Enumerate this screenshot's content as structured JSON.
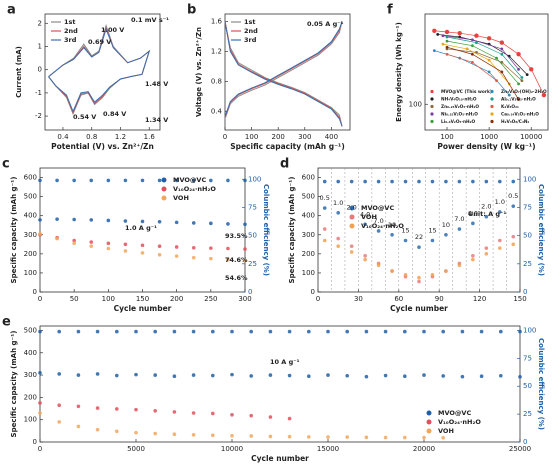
{
  "chart_data": [
    {
      "label": "a",
      "type": "line",
      "xlabel": "Potential (V) vs. Zn²⁺/Zn",
      "ylabel": "Current (mA)",
      "xlim": [
        0.15,
        1.75
      ],
      "xticks": [
        0.4,
        0.8,
        1.2,
        1.6
      ],
      "ylim": [
        -2.6,
        2.4
      ],
      "yticks": [
        -2,
        -1,
        0,
        1,
        2
      ],
      "legend": "upper left",
      "x": [
        0.2,
        0.4,
        0.55,
        0.69,
        0.8,
        0.9,
        1.0,
        1.1,
        1.3,
        1.48,
        1.6,
        1.5,
        1.34,
        1.2,
        1.05,
        0.95,
        0.84,
        0.75,
        0.65,
        0.54,
        0.45,
        0.3,
        0.2
      ],
      "series": [
        {
          "name": "1st",
          "color": "#8a8a8a",
          "values": [
            -0.3,
            0.2,
            0.5,
            1.1,
            0.6,
            0.8,
            1.9,
            1.0,
            0.3,
            0.5,
            0.8,
            -0.2,
            -0.3,
            -0.4,
            -0.8,
            -1.2,
            -1.5,
            -1.0,
            -1.1,
            -1.9,
            -1.2,
            -0.7,
            -0.3
          ]
        },
        {
          "name": "2nd",
          "color": "#d9534f",
          "values": [
            -0.3,
            0.2,
            0.45,
            1.0,
            0.55,
            0.75,
            1.8,
            0.95,
            0.3,
            0.5,
            0.8,
            -0.2,
            -0.3,
            -0.4,
            -0.75,
            -1.15,
            -1.45,
            -1.0,
            -1.05,
            -1.85,
            -1.15,
            -0.7,
            -0.3
          ]
        },
        {
          "name": "3rd",
          "color": "#3a6fb0",
          "values": [
            -0.3,
            0.2,
            0.45,
            0.95,
            0.55,
            0.75,
            1.75,
            0.95,
            0.3,
            0.5,
            0.8,
            -0.2,
            -0.3,
            -0.4,
            -0.75,
            -1.1,
            -1.4,
            -0.95,
            -1.0,
            -1.8,
            -1.1,
            -0.7,
            -0.3
          ]
        }
      ],
      "annotations": [
        "0.1 mV s⁻¹",
        "1.00 V",
        "0.69 V",
        "0.54 V",
        "0.84 V",
        "1.48 V",
        "1.34 V"
      ]
    },
    {
      "label": "b",
      "type": "line",
      "xlabel": "Specific capacity (mAh g⁻¹)",
      "ylabel": "Voltage (V) vs. Zn²⁺/Zn",
      "xlim": [
        0,
        470
      ],
      "xticks": [
        0,
        100,
        200,
        300,
        400
      ],
      "ylim": [
        0.15,
        1.7
      ],
      "yticks": [
        0.4,
        0.8,
        1.2,
        1.6
      ],
      "legend": "upper left",
      "x": [
        0,
        20,
        50,
        100,
        150,
        200,
        250,
        300,
        350,
        400,
        430,
        440,
        440,
        0,
        20,
        50,
        100,
        150,
        200,
        250,
        300,
        350,
        400,
        430,
        440
      ],
      "series": [
        {
          "name": "1st",
          "color": "#8a8a8a",
          "values": [
            1.6,
            1.25,
            1.05,
            0.95,
            0.85,
            0.78,
            0.72,
            0.65,
            0.55,
            0.45,
            0.35,
            0.2,
            null,
            0.3,
            0.5,
            0.6,
            0.68,
            0.75,
            0.85,
            0.95,
            1.05,
            1.15,
            1.3,
            1.45,
            1.6
          ]
        },
        {
          "name": "2nd",
          "color": "#d9534f",
          "values": [
            1.6,
            1.22,
            1.03,
            0.93,
            0.84,
            0.77,
            0.71,
            0.64,
            0.54,
            0.44,
            0.32,
            0.2,
            null,
            0.32,
            0.52,
            0.62,
            0.7,
            0.77,
            0.87,
            0.97,
            1.07,
            1.17,
            1.32,
            1.48,
            1.6
          ]
        },
        {
          "name": "3rd",
          "color": "#3a6fb0",
          "values": [
            1.6,
            1.2,
            1.02,
            0.92,
            0.83,
            0.76,
            0.7,
            0.63,
            0.53,
            0.43,
            0.3,
            0.2,
            null,
            0.33,
            0.53,
            0.63,
            0.71,
            0.78,
            0.88,
            0.98,
            1.08,
            1.18,
            1.33,
            1.5,
            1.6
          ]
        }
      ],
      "annotations": [
        "0.05 A g⁻¹"
      ]
    },
    {
      "label": "c",
      "type": "scatter",
      "xlabel": "Cycle number",
      "ylabel": "Specific capacity (mAh g⁻¹)",
      "y2label": "Columbic efficiency (%)",
      "xlim": [
        0,
        300
      ],
      "xticks": [
        0,
        50,
        100,
        150,
        200,
        250,
        300
      ],
      "ylim": [
        0,
        650
      ],
      "yticks": [
        0,
        100,
        200,
        300,
        400,
        500,
        600
      ],
      "y2lim": [
        0,
        110
      ],
      "y2ticks": [
        0,
        25,
        50,
        75,
        100
      ],
      "legend": "upper right",
      "x": [
        0,
        25,
        50,
        75,
        100,
        125,
        150,
        175,
        200,
        225,
        250,
        275,
        300
      ],
      "series": [
        {
          "name": "MVO@VC",
          "color": "#1f5fa8",
          "values": [
            378,
            382,
            380,
            378,
            375,
            372,
            370,
            368,
            365,
            362,
            360,
            357,
            355
          ]
        },
        {
          "name": "V₁₀O₂₄·nH₂O",
          "color": "#e0505a",
          "values": [
            300,
            285,
            270,
            262,
            255,
            250,
            245,
            240,
            236,
            232,
            230,
            228,
            225
          ]
        },
        {
          "name": "VOH",
          "color": "#f2a65a",
          "values": [
            305,
            280,
            255,
            240,
            228,
            215,
            205,
            195,
            188,
            180,
            175,
            170,
            165
          ]
        },
        {
          "color": "#1f5fa8",
          "axis": "y2",
          "values": [
            99,
            99,
            99,
            99,
            99,
            99,
            99,
            99,
            99,
            99,
            99,
            99,
            99
          ]
        }
      ],
      "annotations": [
        "1.0 A g⁻¹",
        "93.5%",
        "74.6%",
        "54.6%"
      ]
    },
    {
      "label": "d",
      "type": "scatter",
      "xlabel": "Cycle number",
      "ylabel": "Specific capacity (mAh g⁻¹)",
      "y2label": "Columbic efficiency (%)",
      "xlim": [
        0,
        150
      ],
      "xticks": [
        0,
        30,
        60,
        90,
        120,
        150
      ],
      "ylim": [
        0,
        650
      ],
      "yticks": [
        0,
        100,
        200,
        300,
        400,
        500,
        600
      ],
      "y2lim": [
        0,
        110
      ],
      "y2ticks": [
        0,
        25,
        50,
        75,
        100
      ],
      "legend": "center left",
      "x": [
        5,
        15,
        25,
        35,
        45,
        55,
        65,
        75,
        85,
        95,
        105,
        115,
        125,
        135,
        145
      ],
      "series": [
        {
          "name": "MVO@VC",
          "color": "#2b6cb0",
          "values": [
            440,
            415,
            390,
            355,
            320,
            300,
            270,
            235,
            270,
            300,
            330,
            360,
            395,
            420,
            450
          ]
        },
        {
          "name": "VOH",
          "color": "#e77a7a",
          "values": [
            330,
            280,
            240,
            190,
            150,
            110,
            80,
            55,
            80,
            110,
            150,
            190,
            230,
            270,
            290
          ]
        },
        {
          "name": "V₁₀O₂₄·nH₂O",
          "color": "#f0a050",
          "values": [
            270,
            240,
            210,
            170,
            140,
            110,
            90,
            75,
            90,
            110,
            140,
            170,
            200,
            230,
            250
          ]
        },
        {
          "color": "#1f5fa8",
          "axis": "y2",
          "values": [
            98,
            98,
            98,
            98,
            98,
            98,
            98,
            98,
            98,
            98,
            98,
            98,
            98,
            98,
            98
          ]
        }
      ],
      "rate_labels": [
        "0.5",
        "1.0",
        "2.0",
        "4.0",
        "7.0",
        "10",
        "15",
        "22",
        "15",
        "10",
        "7.0",
        "4.0",
        "2.0",
        "1.0",
        "0.5"
      ],
      "annotations": [
        "Unit: A g⁻¹"
      ]
    },
    {
      "label": "e",
      "type": "scatter",
      "xlabel": "Cycle number",
      "ylabel": "Specific capacity (mAh g⁻¹)",
      "y2label": "Columbic efficiency (%)",
      "xlim": [
        0,
        25000
      ],
      "xticks": [
        0,
        5000,
        10000,
        15000,
        20000,
        25000
      ],
      "ylim": [
        0,
        520
      ],
      "yticks": [
        0,
        100,
        200,
        300,
        400,
        500
      ],
      "y2lim": [
        0,
        104
      ],
      "y2ticks": [
        0,
        25,
        50,
        75,
        100
      ],
      "legend": "lower right",
      "x": [
        0,
        1000,
        2000,
        3000,
        4000,
        5000,
        6000,
        7000,
        8000,
        9000,
        10000,
        11000,
        12000,
        13000,
        14000,
        15000,
        16000,
        17000,
        18000,
        19000,
        20000,
        21000,
        22000,
        23000,
        24000,
        25000
      ],
      "series": [
        {
          "name": "MVO@VC",
          "color": "#1f5fa8",
          "values": [
            310,
            305,
            300,
            305,
            298,
            302,
            300,
            295,
            300,
            298,
            302,
            296,
            300,
            298,
            295,
            300,
            297,
            293,
            298,
            295,
            300,
            296,
            293,
            295,
            297,
            292
          ]
        },
        {
          "name": "V₁₀O₂₄·nH₂O",
          "color": "#e0505a",
          "values": [
            175,
            165,
            160,
            152,
            148,
            145,
            140,
            135,
            130,
            128,
            122,
            118,
            112,
            105,
            null,
            null,
            null,
            null,
            null,
            null,
            null,
            null,
            null,
            null,
            null,
            null
          ]
        },
        {
          "name": "VOH",
          "color": "#f2a65a",
          "values": [
            130,
            90,
            70,
            55,
            48,
            42,
            38,
            35,
            32,
            30,
            28,
            27,
            25,
            24,
            23,
            22,
            22,
            21,
            20,
            20,
            20,
            19,
            null,
            null,
            null,
            null
          ]
        },
        {
          "color": "#1f5fa8",
          "axis": "y2",
          "values": [
            99,
            99,
            99,
            99,
            99,
            99,
            99,
            99,
            99,
            99,
            99,
            99,
            99,
            99,
            99,
            99,
            99,
            99,
            99,
            99,
            99,
            99,
            99,
            99,
            99,
            99
          ]
        }
      ],
      "annotations": [
        "10 A g⁻¹"
      ]
    },
    {
      "label": "f",
      "type": "line",
      "markers": true,
      "xlog": true,
      "ylog": true,
      "xlabel": "Power density (W kg⁻¹)",
      "ylabel": "Energy density (Wh kg⁻¹)",
      "xlim": [
        30,
        25000
      ],
      "xticks": [
        100,
        1000,
        10000
      ],
      "ylim": [
        60,
        600
      ],
      "yticks": [
        100
      ],
      "legend": "lower left",
      "series": [
        {
          "name": "MVO@VC (This work)",
          "color": "#e8413c",
          "x": [
            50,
            100,
            200,
            500,
            1000,
            2000,
            5000,
            10000,
            20000
          ],
          "values": [
            430,
            420,
            410,
            390,
            370,
            340,
            270,
            200,
            120
          ]
        },
        {
          "name": "NH₄V₄O₁₀·nH₂O",
          "color": "#222222",
          "x": [
            60,
            200,
            1000,
            3000,
            8000
          ],
          "values": [
            400,
            380,
            330,
            260,
            180
          ]
        },
        {
          "name": "Zn₀.₂₅V₂O₅·nH₂O",
          "color": "#8a6d3b",
          "x": [
            100,
            500,
            2000,
            6000
          ],
          "values": [
            300,
            280,
            230,
            160
          ]
        },
        {
          "name": "Ni₀.₂₅V₂O₅·nH₂O",
          "color": "#7b3fa0",
          "x": [
            80,
            400,
            2000,
            5000
          ],
          "values": [
            390,
            360,
            300,
            200
          ]
        },
        {
          "name": "Li₀.₆V₂O₅·nH₂O",
          "color": "#3a9e3a",
          "x": [
            100,
            400,
            1500,
            5000
          ],
          "values": [
            350,
            320,
            250,
            150
          ]
        },
        {
          "name": "Zn₃V₂O₇(OH)₂·2H₂O",
          "color": "#2b8cbe",
          "x": [
            50,
            200,
            1000,
            3000
          ],
          "values": [
            290,
            250,
            190,
            120
          ]
        },
        {
          "name": "Al₀.₁V₂O₅·nH₂O",
          "color": "#1a9e8f",
          "x": [
            100,
            500,
            2000,
            6000
          ],
          "values": [
            380,
            340,
            270,
            170
          ]
        },
        {
          "name": "K₂V₈O₂₁",
          "color": "#d6604d",
          "x": [
            100,
            400,
            1500
          ],
          "values": [
            270,
            230,
            160
          ]
        },
        {
          "name": "Ca₀.₂₄V₂O₅·nH₂O",
          "color": "#e6a817",
          "x": [
            80,
            300,
            1000,
            3000
          ],
          "values": [
            330,
            300,
            240,
            150
          ]
        },
        {
          "name": "H₂V₃O₈/C₃N₄",
          "color": "#8c2d04",
          "x": [
            100,
            400,
            2000,
            5000
          ],
          "values": [
            310,
            270,
            190,
            110
          ]
        }
      ]
    }
  ]
}
